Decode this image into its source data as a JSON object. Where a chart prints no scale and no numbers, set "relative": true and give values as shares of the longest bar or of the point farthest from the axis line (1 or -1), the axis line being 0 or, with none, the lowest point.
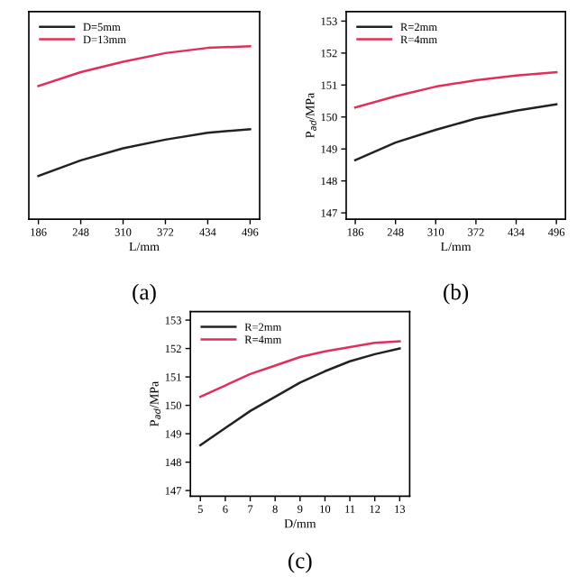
{
  "chart_data": [
    {
      "type": "line",
      "relative": true,
      "xlabel": "L/mm",
      "annotations": [
        "(a)"
      ],
      "x": [
        186,
        248,
        310,
        372,
        434,
        496
      ],
      "xlim": [
        172,
        510
      ],
      "xticks": [
        186,
        248,
        310,
        372,
        434,
        496
      ],
      "legend": "top left",
      "grid": false,
      "series": [
        {
          "name": "D=5mm",
          "color": "#222222",
          "values": [
            0.25,
            0.34,
            0.41,
            0.46,
            0.5,
            0.52
          ]
        },
        {
          "name": "D=13mm",
          "color": "#e0305a",
          "values": [
            0.77,
            0.85,
            0.91,
            0.96,
            0.99,
            1.0
          ]
        }
      ]
    },
    {
      "type": "line",
      "xlabel": "L/mm",
      "ylabel": "P$_{ad}$/MPa",
      "annotations": [
        "(b)"
      ],
      "x": [
        186,
        248,
        310,
        372,
        434,
        496
      ],
      "xlim": [
        172,
        510
      ],
      "xticks": [
        186,
        248,
        310,
        372,
        434,
        496
      ],
      "ylim": [
        146.8,
        153.3
      ],
      "yticks": [
        147,
        148,
        149,
        150,
        151,
        152,
        153
      ],
      "legend": "top left",
      "grid": false,
      "series": [
        {
          "name": "R=2mm",
          "color": "#222222",
          "values": [
            148.65,
            149.2,
            149.6,
            149.95,
            150.2,
            150.4
          ]
        },
        {
          "name": "R=4mm",
          "color": "#e0305a",
          "values": [
            150.3,
            150.65,
            150.95,
            151.15,
            151.3,
            151.4
          ]
        }
      ]
    },
    {
      "type": "line",
      "xlabel": "D/mm",
      "ylabel": "P$_{ad}$/MPa",
      "annotations": [
        "(c)"
      ],
      "x": [
        5,
        6,
        7,
        8,
        9,
        10,
        11,
        12,
        13
      ],
      "xlim": [
        4.6,
        13.4
      ],
      "xticks": [
        5,
        6,
        7,
        8,
        9,
        10,
        11,
        12,
        13
      ],
      "ylim": [
        146.8,
        153.3
      ],
      "yticks": [
        147,
        148,
        149,
        150,
        151,
        152,
        153
      ],
      "legend": "top left",
      "grid": false,
      "series": [
        {
          "name": "R=2mm",
          "color": "#222222",
          "values": [
            148.6,
            149.2,
            149.8,
            150.3,
            150.8,
            151.2,
            151.55,
            151.8,
            152.0
          ]
        },
        {
          "name": "R=4mm",
          "color": "#e0305a",
          "values": [
            150.3,
            150.7,
            151.1,
            151.4,
            151.7,
            151.9,
            152.05,
            152.2,
            152.25
          ]
        }
      ]
    }
  ]
}
